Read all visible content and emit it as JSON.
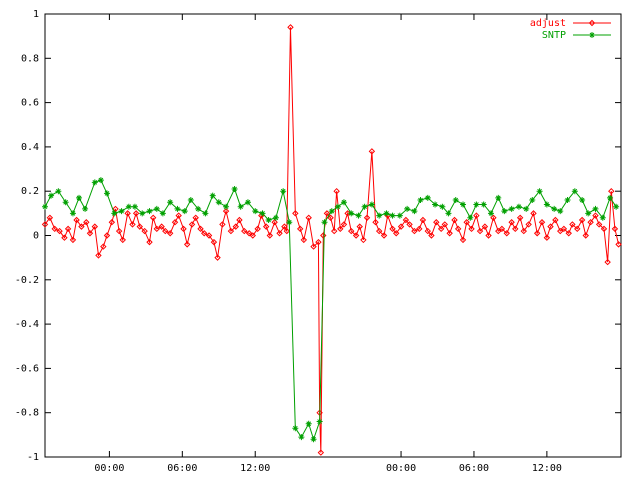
{
  "chart_data": {
    "type": "line",
    "xlim": [
      -5.3,
      42.1
    ],
    "xticks": [
      {
        "value": 0,
        "label": "00:00"
      },
      {
        "value": 6,
        "label": "06:00"
      },
      {
        "value": 12,
        "label": "12:00"
      },
      {
        "value": 24,
        "label": "00:00"
      },
      {
        "value": 30,
        "label": "06:00"
      },
      {
        "value": 36,
        "label": "12:00"
      }
    ],
    "ylim": [
      -1,
      1
    ],
    "yticks": [
      -1,
      -0.8,
      -0.6,
      -0.4,
      -0.2,
      0,
      0.2,
      0.4,
      0.6,
      0.8,
      1
    ],
    "grid": false,
    "legend": "top-right",
    "series": [
      {
        "name": "adjust",
        "color": "#ff0000",
        "marker": "diamond",
        "x": [
          -5.3,
          -4.9,
          -4.5,
          -4.1,
          -3.7,
          -3.4,
          -3.0,
          -2.7,
          -2.3,
          -1.9,
          -1.6,
          -1.2,
          -0.9,
          -0.5,
          -0.2,
          0.2,
          0.5,
          0.8,
          1.1,
          1.5,
          1.9,
          2.2,
          2.5,
          2.9,
          3.3,
          3.6,
          3.9,
          4.3,
          4.6,
          5.0,
          5.4,
          5.7,
          6.1,
          6.4,
          6.8,
          7.1,
          7.5,
          7.8,
          8.2,
          8.6,
          8.9,
          9.3,
          9.6,
          10.0,
          10.4,
          10.7,
          11.1,
          11.5,
          11.8,
          12.2,
          12.5,
          12.9,
          13.2,
          13.6,
          14.0,
          14.4,
          14.6,
          14.9,
          15.3,
          15.7,
          16.0,
          16.4,
          16.8,
          17.2,
          17.3,
          17.4,
          17.6,
          17.9,
          18.2,
          18.5,
          18.7,
          19.0,
          19.3,
          19.6,
          19.9,
          20.3,
          20.6,
          20.9,
          21.2,
          21.6,
          21.9,
          22.2,
          22.6,
          22.9,
          23.3,
          23.6,
          24.0,
          24.4,
          24.7,
          25.1,
          25.5,
          25.8,
          26.2,
          26.5,
          26.9,
          27.3,
          27.6,
          28.0,
          28.4,
          28.7,
          29.1,
          29.4,
          29.8,
          30.2,
          30.5,
          30.9,
          31.2,
          31.6,
          32.0,
          32.3,
          32.7,
          33.1,
          33.4,
          33.8,
          34.1,
          34.5,
          34.9,
          35.2,
          35.6,
          36.0,
          36.3,
          36.7,
          37.1,
          37.4,
          37.8,
          38.1,
          38.5,
          38.9,
          39.2,
          39.6,
          40.0,
          40.3,
          40.7,
          41.0,
          41.3,
          41.6,
          41.9
        ],
        "values": [
          0.05,
          0.08,
          0.03,
          0.02,
          -0.01,
          0.03,
          -0.02,
          0.07,
          0.04,
          0.06,
          0.01,
          0.04,
          -0.09,
          -0.05,
          0.0,
          0.06,
          0.12,
          0.02,
          -0.02,
          0.1,
          0.05,
          0.1,
          0.04,
          0.02,
          -0.03,
          0.08,
          0.03,
          0.04,
          0.02,
          0.01,
          0.06,
          0.09,
          0.03,
          -0.04,
          0.05,
          0.08,
          0.03,
          0.01,
          0.0,
          -0.03,
          -0.1,
          0.05,
          0.11,
          0.02,
          0.04,
          0.07,
          0.02,
          0.01,
          0.0,
          0.03,
          0.09,
          0.04,
          0.0,
          0.06,
          0.01,
          0.04,
          0.02,
          0.94,
          0.1,
          0.03,
          -0.02,
          0.08,
          -0.05,
          -0.03,
          -0.8,
          -0.98,
          0.0,
          0.1,
          0.08,
          0.02,
          0.2,
          0.03,
          0.05,
          0.1,
          0.02,
          0.0,
          0.04,
          -0.02,
          0.08,
          0.38,
          0.06,
          0.02,
          0.0,
          0.09,
          0.03,
          0.01,
          0.04,
          0.07,
          0.05,
          0.02,
          0.03,
          0.07,
          0.02,
          0.0,
          0.06,
          0.03,
          0.05,
          0.01,
          0.07,
          0.03,
          -0.02,
          0.06,
          0.03,
          0.09,
          0.02,
          0.04,
          0.0,
          0.08,
          0.02,
          0.03,
          0.01,
          0.06,
          0.03,
          0.08,
          0.02,
          0.05,
          0.1,
          0.01,
          0.06,
          -0.01,
          0.04,
          0.07,
          0.02,
          0.03,
          0.01,
          0.05,
          0.03,
          0.07,
          0.0,
          0.06,
          0.09,
          0.05,
          0.03,
          -0.12,
          0.2,
          0.03,
          -0.04
        ]
      },
      {
        "name": "SNTP",
        "color": "#00a000",
        "marker": "star",
        "x": [
          -5.3,
          -4.8,
          -4.2,
          -3.6,
          -3.0,
          -2.5,
          -2.0,
          -1.2,
          -0.7,
          -0.2,
          0.4,
          1.0,
          1.6,
          2.1,
          2.7,
          3.3,
          3.9,
          4.4,
          5.0,
          5.6,
          6.2,
          6.7,
          7.3,
          7.9,
          8.5,
          9.0,
          9.6,
          10.3,
          10.8,
          11.4,
          12.0,
          12.6,
          13.1,
          13.7,
          14.3,
          14.8,
          15.3,
          15.8,
          16.4,
          16.8,
          17.3,
          17.7,
          18.3,
          18.8,
          19.3,
          19.9,
          20.5,
          21.0,
          21.6,
          22.2,
          22.8,
          23.3,
          23.9,
          24.5,
          25.1,
          25.6,
          26.2,
          26.8,
          27.4,
          27.9,
          28.5,
          29.1,
          29.7,
          30.2,
          30.8,
          31.4,
          32.0,
          32.5,
          33.1,
          33.7,
          34.3,
          34.8,
          35.4,
          36.0,
          36.6,
          37.1,
          37.7,
          38.3,
          38.9,
          39.4,
          40.0,
          40.6,
          41.2,
          41.7
        ],
        "values": [
          0.13,
          0.18,
          0.2,
          0.15,
          0.1,
          0.17,
          0.12,
          0.24,
          0.25,
          0.19,
          0.1,
          0.11,
          0.13,
          0.13,
          0.1,
          0.11,
          0.12,
          0.1,
          0.15,
          0.12,
          0.11,
          0.16,
          0.12,
          0.1,
          0.18,
          0.15,
          0.13,
          0.21,
          0.13,
          0.15,
          0.11,
          0.1,
          0.07,
          0.08,
          0.2,
          0.06,
          -0.87,
          -0.91,
          -0.85,
          -0.92,
          -0.84,
          0.06,
          0.11,
          0.13,
          0.15,
          0.1,
          0.09,
          0.13,
          0.14,
          0.09,
          0.1,
          0.09,
          0.09,
          0.12,
          0.11,
          0.16,
          0.17,
          0.14,
          0.13,
          0.1,
          0.16,
          0.14,
          0.08,
          0.14,
          0.14,
          0.1,
          0.17,
          0.11,
          0.12,
          0.13,
          0.12,
          0.16,
          0.2,
          0.14,
          0.12,
          0.11,
          0.16,
          0.2,
          0.16,
          0.1,
          0.12,
          0.08,
          0.17,
          0.13
        ]
      }
    ]
  }
}
